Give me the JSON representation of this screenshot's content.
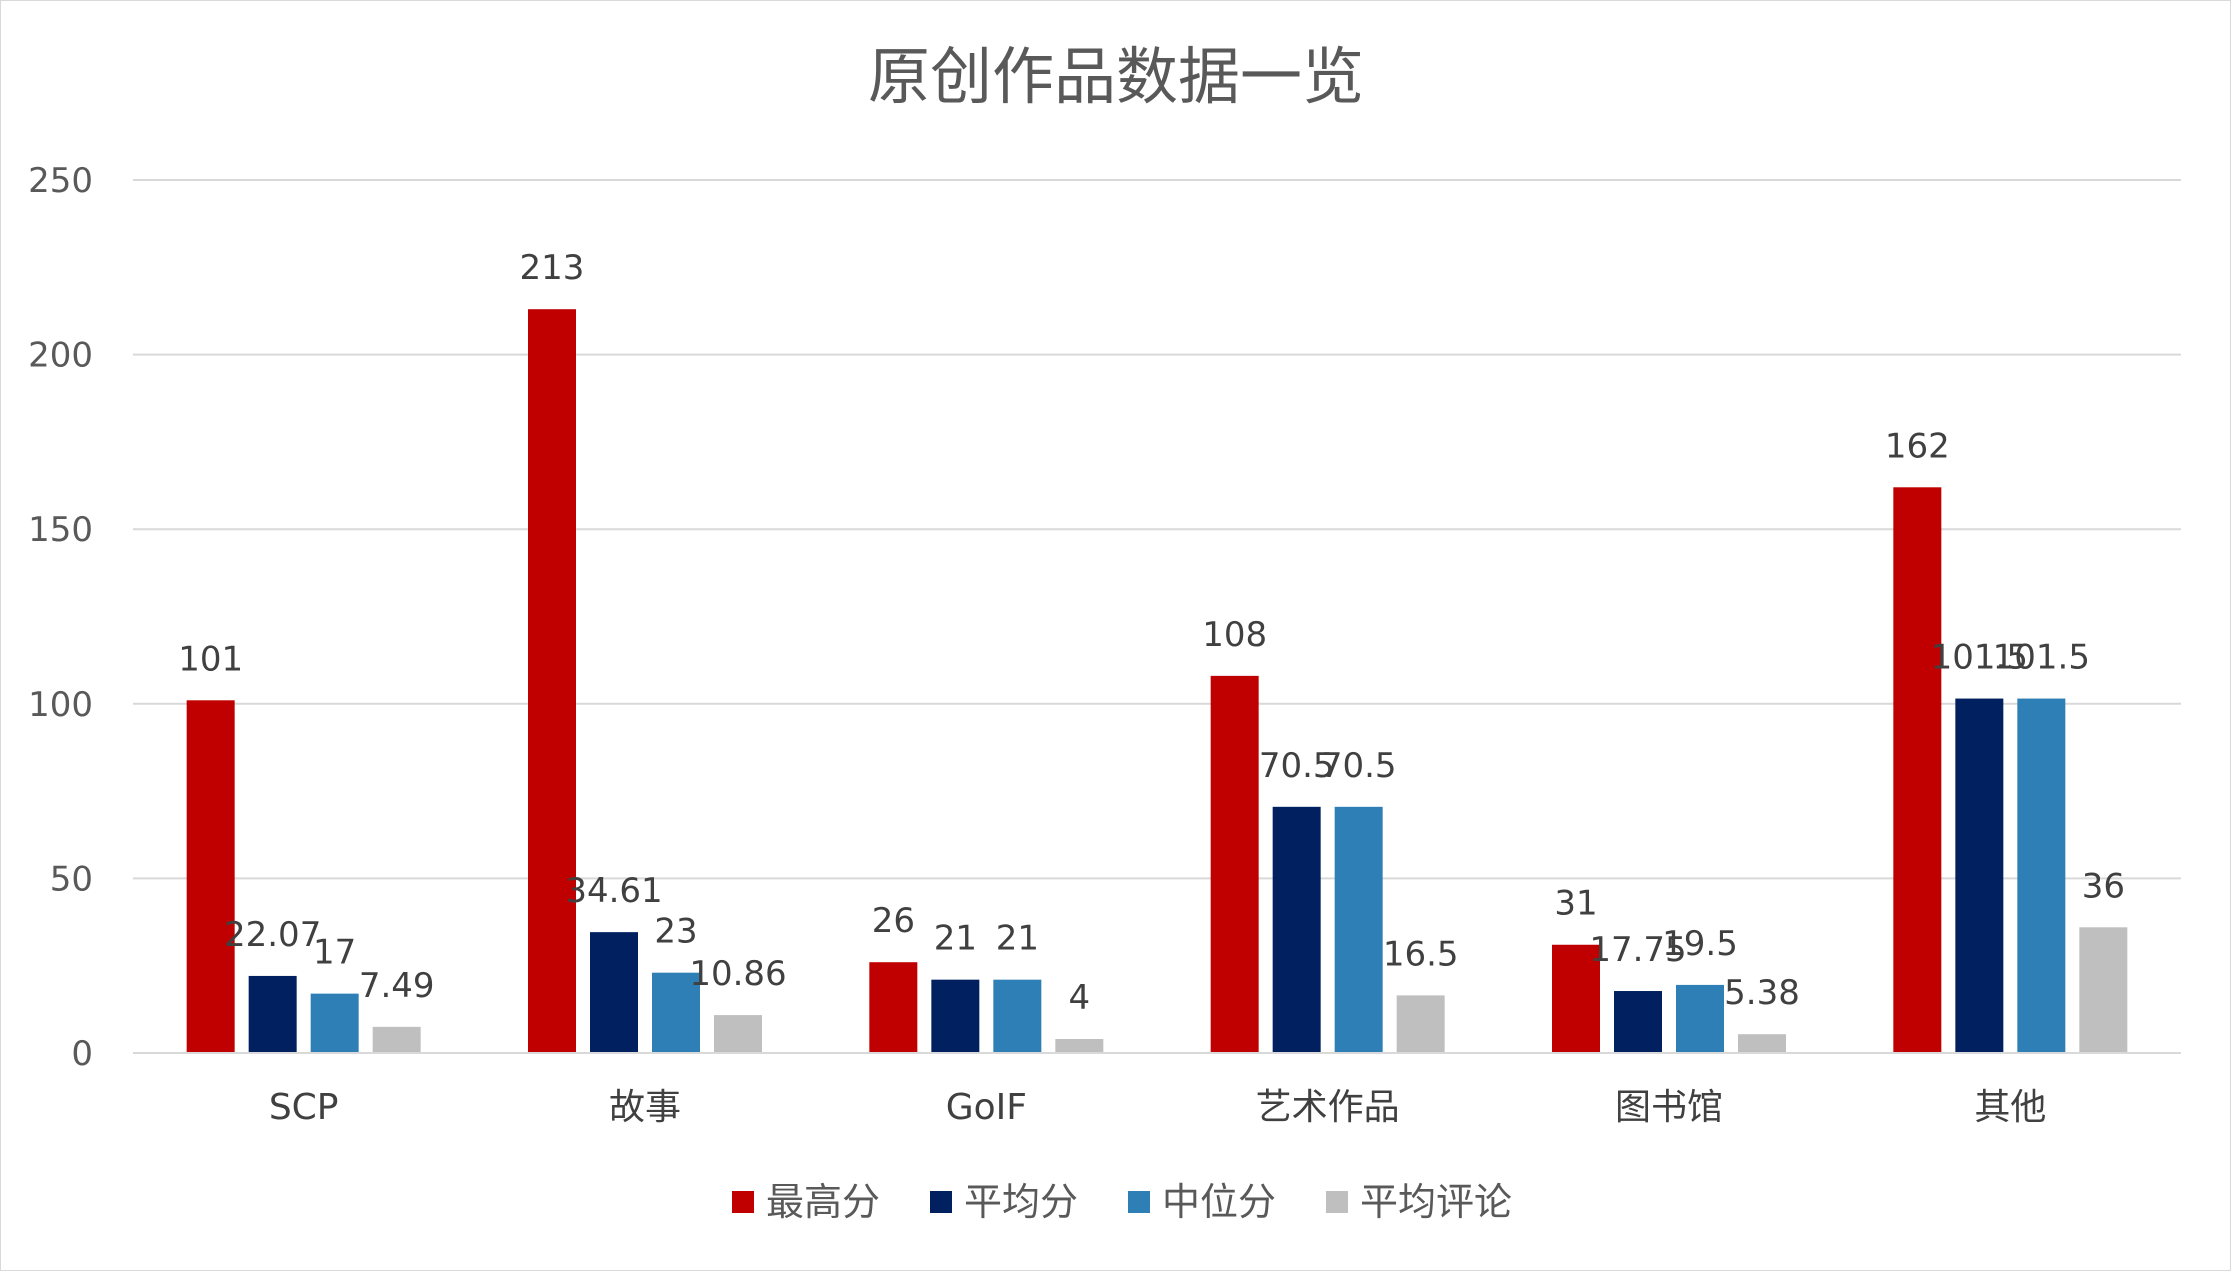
{
  "chart_data": {
    "type": "bar",
    "title": "原创作品数据一览",
    "categories": [
      "SCP",
      "故事",
      "GoIF",
      "艺术作品",
      "图书馆",
      "其他"
    ],
    "series": [
      {
        "name": "最高分",
        "color": "#c00000",
        "values": [
          101,
          213,
          26,
          108,
          31,
          162
        ],
        "labels": [
          "101",
          "213",
          "26",
          "108",
          "31",
          "162"
        ]
      },
      {
        "name": "平均分",
        "color": "#002060",
        "values": [
          22.07,
          34.61,
          21,
          70.5,
          17.75,
          101.5
        ],
        "labels": [
          "22.07",
          "34.61",
          "21",
          "70.5",
          "17.75",
          "101.5"
        ]
      },
      {
        "name": "中位分",
        "color": "#2e7fb5",
        "values": [
          17,
          23,
          21,
          70.5,
          19.5,
          101.5
        ],
        "labels": [
          "17",
          "23",
          "21",
          "70.5",
          "19.5",
          "101.5"
        ]
      },
      {
        "name": "平均评论",
        "color": "#bfbfbf",
        "values": [
          7.49,
          10.86,
          4,
          16.5,
          5.38,
          36
        ],
        "labels": [
          "7.49",
          "10.86",
          "4",
          "16.5",
          "5.38",
          "36"
        ]
      }
    ],
    "ylim": [
      0,
      250
    ],
    "yticks": [
      "0",
      "50",
      "100",
      "150",
      "200",
      "250"
    ],
    "grid": true,
    "legend_position": "bottom"
  }
}
